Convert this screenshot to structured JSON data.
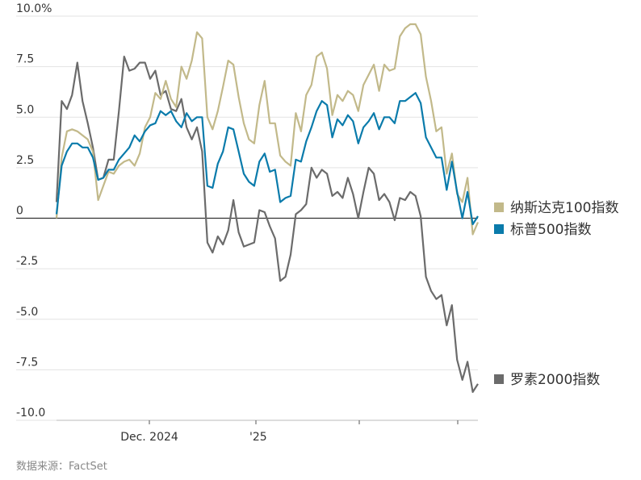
{
  "source": "数据来源：FactSet",
  "chart_data": {
    "type": "line",
    "ylim": [
      -10,
      10
    ],
    "y_ticks": [
      10,
      7.5,
      5,
      2.5,
      0,
      -2.5,
      -5,
      -7.5,
      -10
    ],
    "y_tick_labels": [
      "10.0%",
      "7.5",
      "5.0",
      "2.5",
      "0",
      "-2.5",
      "-5.0",
      "-7.5",
      "-10.0"
    ],
    "x_tick_labels": [
      "Dec. 2024",
      "'25",
      "",
      ""
    ],
    "xlim": [
      0,
      100
    ],
    "x_ticks": [
      22,
      47,
      72,
      95
    ],
    "grid": true,
    "legend_position": "right",
    "series": [
      {
        "name": "纳斯达克100指数",
        "color": "#c2b98a",
        "values": [
          [
            0,
            0.0
          ],
          [
            1,
            3.0
          ],
          [
            2,
            4.3
          ],
          [
            3,
            4.4
          ],
          [
            4,
            4.3
          ],
          [
            5,
            4.1
          ],
          [
            6,
            3.9
          ],
          [
            7,
            3.3
          ],
          [
            8,
            0.9
          ],
          [
            9,
            1.6
          ],
          [
            10,
            2.3
          ],
          [
            11,
            2.2
          ],
          [
            12,
            2.6
          ],
          [
            13,
            2.8
          ],
          [
            14,
            2.9
          ],
          [
            15,
            2.6
          ],
          [
            16,
            3.2
          ],
          [
            17,
            4.5
          ],
          [
            18,
            5.0
          ],
          [
            19,
            6.2
          ],
          [
            20,
            5.9
          ],
          [
            21,
            6.8
          ],
          [
            22,
            5.9
          ],
          [
            23,
            5.5
          ],
          [
            24,
            7.5
          ],
          [
            25,
            6.9
          ],
          [
            26,
            7.8
          ],
          [
            27,
            9.2
          ],
          [
            28,
            8.9
          ],
          [
            29,
            5.0
          ],
          [
            30,
            4.4
          ],
          [
            31,
            5.3
          ],
          [
            32,
            6.5
          ],
          [
            33,
            7.8
          ],
          [
            34,
            7.6
          ],
          [
            35,
            6.0
          ],
          [
            36,
            4.7
          ],
          [
            37,
            3.9
          ],
          [
            38,
            3.7
          ],
          [
            39,
            5.6
          ],
          [
            40,
            6.8
          ],
          [
            41,
            4.7
          ],
          [
            42,
            4.7
          ],
          [
            43,
            3.1
          ],
          [
            44,
            2.8
          ],
          [
            45,
            2.6
          ],
          [
            46,
            5.2
          ],
          [
            47,
            4.3
          ],
          [
            48,
            6.1
          ],
          [
            49,
            6.6
          ],
          [
            50,
            8.0
          ],
          [
            51,
            8.2
          ],
          [
            52,
            7.4
          ],
          [
            53,
            5.1
          ],
          [
            54,
            6.1
          ],
          [
            55,
            5.8
          ],
          [
            56,
            6.3
          ],
          [
            57,
            6.1
          ],
          [
            58,
            5.3
          ],
          [
            59,
            6.6
          ],
          [
            60,
            7.1
          ],
          [
            61,
            7.6
          ],
          [
            62,
            6.3
          ],
          [
            63,
            7.6
          ],
          [
            64,
            7.3
          ],
          [
            65,
            7.4
          ],
          [
            66,
            9.0
          ],
          [
            67,
            9.4
          ],
          [
            68,
            9.6
          ],
          [
            69,
            9.6
          ],
          [
            70,
            9.1
          ],
          [
            71,
            7.0
          ],
          [
            72,
            5.8
          ],
          [
            73,
            4.3
          ],
          [
            74,
            4.5
          ],
          [
            75,
            2.2
          ],
          [
            76,
            3.2
          ],
          [
            77,
            1.2
          ],
          [
            78,
            0.8
          ],
          [
            79,
            2.0
          ],
          [
            80,
            -0.8
          ],
          [
            81,
            -0.2
          ]
        ]
      },
      {
        "name": "标普500指数",
        "color": "#0a7bab",
        "values": [
          [
            0,
            0.2
          ],
          [
            1,
            2.6
          ],
          [
            2,
            3.3
          ],
          [
            3,
            3.7
          ],
          [
            4,
            3.7
          ],
          [
            5,
            3.5
          ],
          [
            6,
            3.5
          ],
          [
            7,
            3.0
          ],
          [
            8,
            1.9
          ],
          [
            9,
            2.0
          ],
          [
            10,
            2.4
          ],
          [
            11,
            2.4
          ],
          [
            12,
            2.9
          ],
          [
            13,
            3.2
          ],
          [
            14,
            3.5
          ],
          [
            15,
            4.1
          ],
          [
            16,
            3.8
          ],
          [
            17,
            4.3
          ],
          [
            18,
            4.6
          ],
          [
            19,
            4.7
          ],
          [
            20,
            5.3
          ],
          [
            21,
            5.1
          ],
          [
            22,
            5.3
          ],
          [
            23,
            4.8
          ],
          [
            24,
            4.5
          ],
          [
            25,
            5.2
          ],
          [
            26,
            4.8
          ],
          [
            27,
            5.0
          ],
          [
            28,
            5.0
          ],
          [
            29,
            1.6
          ],
          [
            30,
            1.5
          ],
          [
            31,
            2.7
          ],
          [
            32,
            3.3
          ],
          [
            33,
            4.5
          ],
          [
            34,
            4.4
          ],
          [
            35,
            3.3
          ],
          [
            36,
            2.2
          ],
          [
            37,
            1.8
          ],
          [
            38,
            1.6
          ],
          [
            39,
            2.8
          ],
          [
            40,
            3.2
          ],
          [
            41,
            2.3
          ],
          [
            42,
            2.4
          ],
          [
            43,
            0.8
          ],
          [
            44,
            1.0
          ],
          [
            45,
            1.1
          ],
          [
            46,
            2.9
          ],
          [
            47,
            2.8
          ],
          [
            48,
            3.8
          ],
          [
            49,
            4.5
          ],
          [
            50,
            5.3
          ],
          [
            51,
            5.8
          ],
          [
            52,
            5.6
          ],
          [
            53,
            4.0
          ],
          [
            54,
            4.9
          ],
          [
            55,
            4.6
          ],
          [
            56,
            5.1
          ],
          [
            57,
            4.8
          ],
          [
            58,
            3.7
          ],
          [
            59,
            4.5
          ],
          [
            60,
            4.8
          ],
          [
            61,
            5.2
          ],
          [
            62,
            4.4
          ],
          [
            63,
            5.0
          ],
          [
            64,
            5.0
          ],
          [
            65,
            4.7
          ],
          [
            66,
            5.8
          ],
          [
            67,
            5.8
          ],
          [
            68,
            6.0
          ],
          [
            69,
            6.2
          ],
          [
            70,
            5.7
          ],
          [
            71,
            4.0
          ],
          [
            72,
            3.5
          ],
          [
            73,
            3.0
          ],
          [
            74,
            3.0
          ],
          [
            75,
            1.4
          ],
          [
            76,
            2.8
          ],
          [
            77,
            1.3
          ],
          [
            78,
            0.0
          ],
          [
            79,
            1.3
          ],
          [
            80,
            -0.3
          ],
          [
            81,
            0.1
          ]
        ]
      },
      {
        "name": "罗素2000指数",
        "color": "#6b6b6b",
        "values": [
          [
            0,
            0.8
          ],
          [
            1,
            5.8
          ],
          [
            2,
            5.4
          ],
          [
            3,
            6.1
          ],
          [
            4,
            7.7
          ],
          [
            5,
            5.8
          ],
          [
            6,
            4.7
          ],
          [
            7,
            3.5
          ],
          [
            8,
            1.9
          ],
          [
            9,
            2.0
          ],
          [
            10,
            2.9
          ],
          [
            11,
            2.9
          ],
          [
            12,
            5.3
          ],
          [
            13,
            8.0
          ],
          [
            14,
            7.3
          ],
          [
            15,
            7.4
          ],
          [
            16,
            7.7
          ],
          [
            17,
            7.7
          ],
          [
            18,
            6.9
          ],
          [
            19,
            7.3
          ],
          [
            20,
            6.1
          ],
          [
            21,
            6.3
          ],
          [
            22,
            5.4
          ],
          [
            23,
            5.3
          ],
          [
            24,
            5.9
          ],
          [
            25,
            4.5
          ],
          [
            26,
            3.9
          ],
          [
            27,
            4.5
          ],
          [
            28,
            3.3
          ],
          [
            29,
            -1.2
          ],
          [
            30,
            -1.7
          ],
          [
            31,
            -0.9
          ],
          [
            32,
            -1.3
          ],
          [
            33,
            -0.6
          ],
          [
            34,
            0.9
          ],
          [
            35,
            -0.7
          ],
          [
            36,
            -1.4
          ],
          [
            37,
            -1.3
          ],
          [
            38,
            -1.2
          ],
          [
            39,
            0.4
          ],
          [
            40,
            0.3
          ],
          [
            41,
            -0.4
          ],
          [
            42,
            -1.0
          ],
          [
            43,
            -3.1
          ],
          [
            44,
            -2.9
          ],
          [
            45,
            -1.8
          ],
          [
            46,
            0.2
          ],
          [
            47,
            0.4
          ],
          [
            48,
            0.7
          ],
          [
            49,
            2.5
          ],
          [
            50,
            2.0
          ],
          [
            51,
            2.4
          ],
          [
            52,
            2.2
          ],
          [
            53,
            1.1
          ],
          [
            54,
            1.3
          ],
          [
            55,
            1.0
          ],
          [
            56,
            2.0
          ],
          [
            57,
            1.2
          ],
          [
            58,
            0.0
          ],
          [
            59,
            1.3
          ],
          [
            60,
            2.5
          ],
          [
            61,
            2.2
          ],
          [
            62,
            0.9
          ],
          [
            63,
            1.2
          ],
          [
            64,
            0.8
          ],
          [
            65,
            -0.1
          ],
          [
            66,
            1.0
          ],
          [
            67,
            0.9
          ],
          [
            68,
            1.3
          ],
          [
            69,
            1.1
          ],
          [
            70,
            0.1
          ],
          [
            71,
            -2.9
          ],
          [
            72,
            -3.6
          ],
          [
            73,
            -4.0
          ],
          [
            74,
            -3.8
          ],
          [
            75,
            -5.3
          ],
          [
            76,
            -4.3
          ],
          [
            77,
            -7.0
          ],
          [
            78,
            -8.0
          ],
          [
            79,
            -7.1
          ],
          [
            80,
            -8.6
          ],
          [
            81,
            -8.2
          ]
        ]
      }
    ]
  }
}
